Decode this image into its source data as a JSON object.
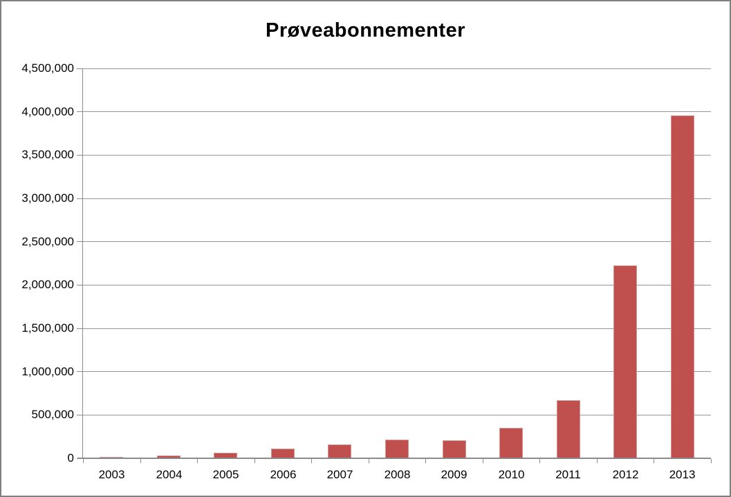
{
  "window": {
    "background": "#ffffff",
    "border_color": "#7f7f7f"
  },
  "chart_data": {
    "type": "bar",
    "title": "Prøveabonnementer",
    "categories": [
      "2003",
      "2004",
      "2005",
      "2006",
      "2007",
      "2008",
      "2009",
      "2010",
      "2011",
      "2012",
      "2013"
    ],
    "values": [
      10000,
      25000,
      55000,
      105000,
      155000,
      210000,
      200000,
      340000,
      665000,
      2220000,
      3950000
    ],
    "xlabel": "",
    "ylabel": "",
    "ylim": [
      0,
      4500000
    ],
    "y_tick_step": 500000,
    "y_tick_labels": [
      "0",
      "500,000",
      "1,000,000",
      "1,500,000",
      "2,000,000",
      "2,500,000",
      "3,000,000",
      "3,500,000",
      "4,000,000",
      "4,500,000"
    ],
    "grid": true,
    "legend": false,
    "colors": {
      "bar_fill": "#c0504d",
      "bar_border": "#d59391",
      "gridline": "#969696",
      "axis": "#8a8a8a",
      "text": "#000000"
    }
  }
}
